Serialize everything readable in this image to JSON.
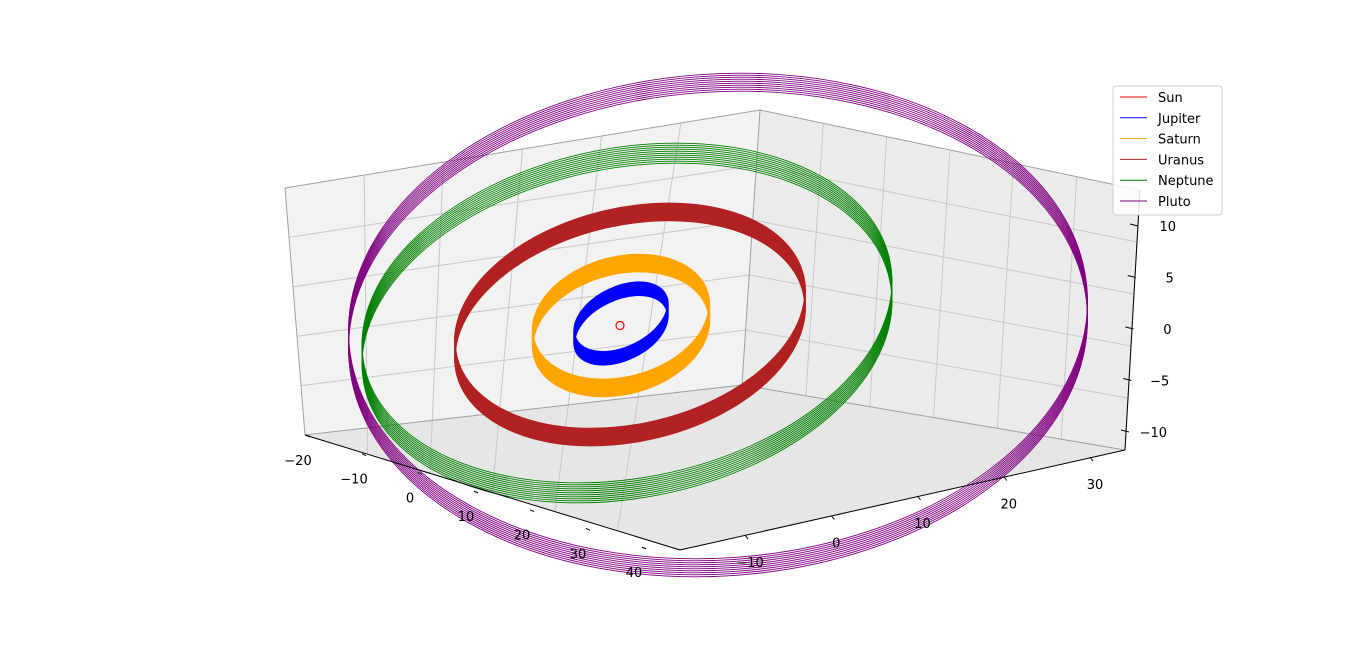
{
  "chart_data": {
    "type": "line",
    "projection": "3d",
    "title": "",
    "grid": true,
    "legend_placement": "top-right",
    "axes": {
      "x": {
        "ticks": [
          "−20",
          "−10",
          "0",
          "10",
          "20",
          "30",
          "40"
        ],
        "range": [
          -20,
          40
        ]
      },
      "y": {
        "ticks": [
          "−10",
          "0",
          "10",
          "20",
          "30"
        ],
        "range": [
          -20,
          35
        ]
      },
      "z": {
        "ticks": [
          "−10",
          "−5",
          "0",
          "5",
          "10"
        ],
        "range": [
          -12,
          12
        ]
      }
    },
    "series": [
      {
        "name": "Sun",
        "color": "#ff0000",
        "orbit_radius": 0.3
      },
      {
        "name": "Jupiter",
        "color": "#0000ff",
        "orbit_radius": 5.2
      },
      {
        "name": "Saturn",
        "color": "#ffa500",
        "orbit_radius": 9.5
      },
      {
        "name": "Uranus",
        "color": "#b22222",
        "orbit_radius": 19.2
      },
      {
        "name": "Neptune",
        "color": "#008000",
        "orbit_radius": 30.1
      },
      {
        "name": "Pluto",
        "color": "#800080",
        "orbit_radius": 39.5
      }
    ]
  }
}
